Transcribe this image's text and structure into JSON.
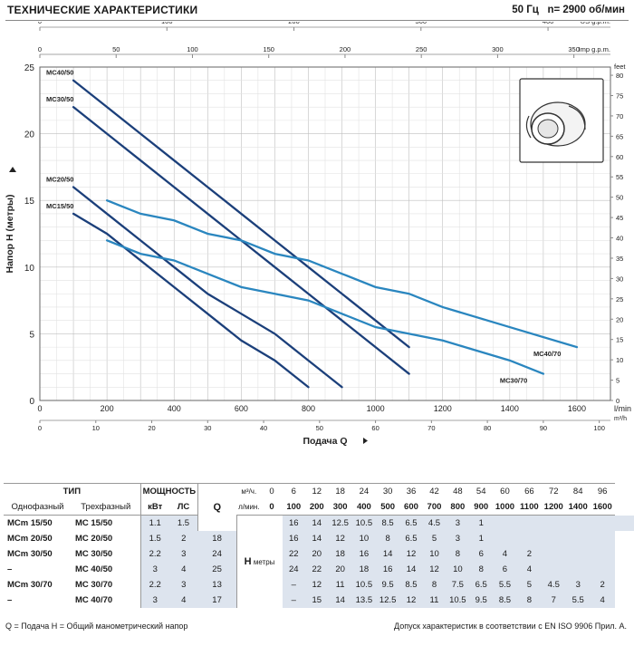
{
  "header": {
    "title": "ТЕХНИЧЕСКИЕ ХАРАКТЕРИСТИКИ",
    "frequency": "50 Гц",
    "speed": "n= 2900 об/мин"
  },
  "chart_data": {
    "type": "line",
    "xlabel": "Подача Q",
    "ylabel": "Напор H (метры)",
    "x_unit": "l/min",
    "x_range": [
      0,
      1700
    ],
    "y_range": [
      0,
      25
    ],
    "x_ticks": [
      0,
      200,
      400,
      600,
      800,
      1000,
      1200,
      1400,
      1600
    ],
    "y_ticks": [
      0,
      5,
      10,
      15,
      20,
      25
    ],
    "secondary_axes": {
      "m3h": {
        "label": "m³/h",
        "ticks": [
          0,
          10,
          20,
          30,
          40,
          50,
          60,
          70,
          80,
          90,
          100
        ]
      },
      "usgpm": {
        "label": "US g.p.m.",
        "ticks": [
          0,
          100,
          200,
          300,
          400
        ]
      },
      "impgpm": {
        "label": "Imp g.p.m.",
        "ticks": [
          0,
          50,
          100,
          150,
          200,
          250,
          300,
          350
        ]
      },
      "feet": {
        "label": "feet",
        "ticks": [
          0,
          5,
          10,
          15,
          20,
          25,
          30,
          35,
          40,
          45,
          50,
          55,
          60,
          65,
          70,
          75,
          80
        ]
      }
    },
    "grid": true,
    "series": [
      {
        "name": "MC15/50",
        "x": [
          100,
          200,
          300,
          400,
          500,
          600,
          700,
          800
        ],
        "y": [
          14,
          12.5,
          10.5,
          8.5,
          6.5,
          4.5,
          3,
          1
        ],
        "color": "#1b3f7a"
      },
      {
        "name": "MC20/50",
        "x": [
          100,
          200,
          300,
          400,
          500,
          600,
          700,
          800,
          900
        ],
        "y": [
          16,
          14,
          12,
          10,
          8,
          6.5,
          5,
          3,
          1
        ],
        "color": "#1b3f7a"
      },
      {
        "name": "MC30/50",
        "x": [
          100,
          200,
          300,
          400,
          500,
          600,
          700,
          800,
          900,
          1000,
          1100
        ],
        "y": [
          22,
          20,
          18,
          16,
          14,
          12,
          10,
          8,
          6,
          4,
          2
        ],
        "color": "#1b3f7a"
      },
      {
        "name": "MC40/50",
        "x": [
          100,
          200,
          300,
          400,
          500,
          600,
          700,
          800,
          900,
          1000,
          1100
        ],
        "y": [
          24,
          22,
          20,
          18,
          16,
          14,
          12,
          10,
          8,
          6,
          4
        ],
        "color": "#1b3f7a"
      },
      {
        "name": "MC30/70",
        "x": [
          200,
          300,
          400,
          500,
          600,
          700,
          800,
          900,
          1000,
          1100,
          1200,
          1400,
          1500
        ],
        "y": [
          12,
          11,
          10.5,
          9.5,
          8.5,
          8,
          7.5,
          6.5,
          5.5,
          5,
          4.5,
          3,
          2
        ],
        "color": "#2a86bf"
      },
      {
        "name": "MC40/70",
        "x": [
          200,
          300,
          400,
          500,
          600,
          700,
          800,
          900,
          1000,
          1100,
          1200,
          1400,
          1600
        ],
        "y": [
          15,
          14,
          13.5,
          12.5,
          12,
          11,
          10.5,
          9.5,
          8.5,
          8,
          7,
          5.5,
          4
        ],
        "color": "#2a86bf"
      }
    ]
  },
  "table": {
    "head_type": "ТИП",
    "head_power": "МОЩНОСТЬ",
    "head_single": "Однофазный",
    "head_three": "Трехфазный",
    "head_kw": "кВт",
    "head_hp": "ЛС",
    "q_symbol": "Q",
    "q_unit_m3h": "м³/ч.",
    "q_unit_lmin": "л/мин.",
    "h_symbol": "H",
    "h_unit": "метры",
    "q_m3h": [
      "0",
      "6",
      "12",
      "18",
      "24",
      "30",
      "36",
      "42",
      "48",
      "54",
      "60",
      "66",
      "72",
      "84",
      "96"
    ],
    "q_lmin": [
      "0",
      "100",
      "200",
      "300",
      "400",
      "500",
      "600",
      "700",
      "800",
      "900",
      "1000",
      "1100",
      "1200",
      "1400",
      "1600"
    ],
    "rows": [
      {
        "single": "MCm 15/50",
        "three": "MC 15/50",
        "kw": "1.1",
        "hp": "1.5",
        "h": [
          "16",
          "14",
          "12.5",
          "10.5",
          "8.5",
          "6.5",
          "4.5",
          "3",
          "1",
          "",
          "",
          "",
          "",
          "",
          ""
        ]
      },
      {
        "single": "MCm 20/50",
        "three": "MC 20/50",
        "kw": "1.5",
        "hp": "2",
        "h": [
          "18",
          "16",
          "14",
          "12",
          "10",
          "8",
          "6.5",
          "5",
          "3",
          "1",
          "",
          "",
          "",
          "",
          ""
        ]
      },
      {
        "single": "MCm 30/50",
        "three": "MC 30/50",
        "kw": "2.2",
        "hp": "3",
        "h": [
          "24",
          "22",
          "20",
          "18",
          "16",
          "14",
          "12",
          "10",
          "8",
          "6",
          "4",
          "2",
          "",
          "",
          ""
        ]
      },
      {
        "single": "–",
        "three": "MC 40/50",
        "kw": "3",
        "hp": "4",
        "h": [
          "25",
          "24",
          "22",
          "20",
          "18",
          "16",
          "14",
          "12",
          "10",
          "8",
          "6",
          "4",
          "",
          "",
          ""
        ]
      },
      {
        "single": "MCm 30/70",
        "three": "MC 30/70",
        "kw": "2.2",
        "hp": "3",
        "h": [
          "13",
          "–",
          "12",
          "11",
          "10.5",
          "9.5",
          "8.5",
          "8",
          "7.5",
          "6.5",
          "5.5",
          "5",
          "4.5",
          "3",
          "2"
        ]
      },
      {
        "single": "–",
        "three": "MC 40/70",
        "kw": "3",
        "hp": "4",
        "h": [
          "17",
          "–",
          "15",
          "14",
          "13.5",
          "12.5",
          "12",
          "11",
          "10.5",
          "9.5",
          "8.5",
          "8",
          "7",
          "5.5",
          "4"
        ]
      }
    ]
  },
  "footer": {
    "legend": "Q = Подача   H = Общий манометрический напор",
    "standard": "Допуск характеристик в соответствии с EN ISO 9906 Прил. А."
  }
}
